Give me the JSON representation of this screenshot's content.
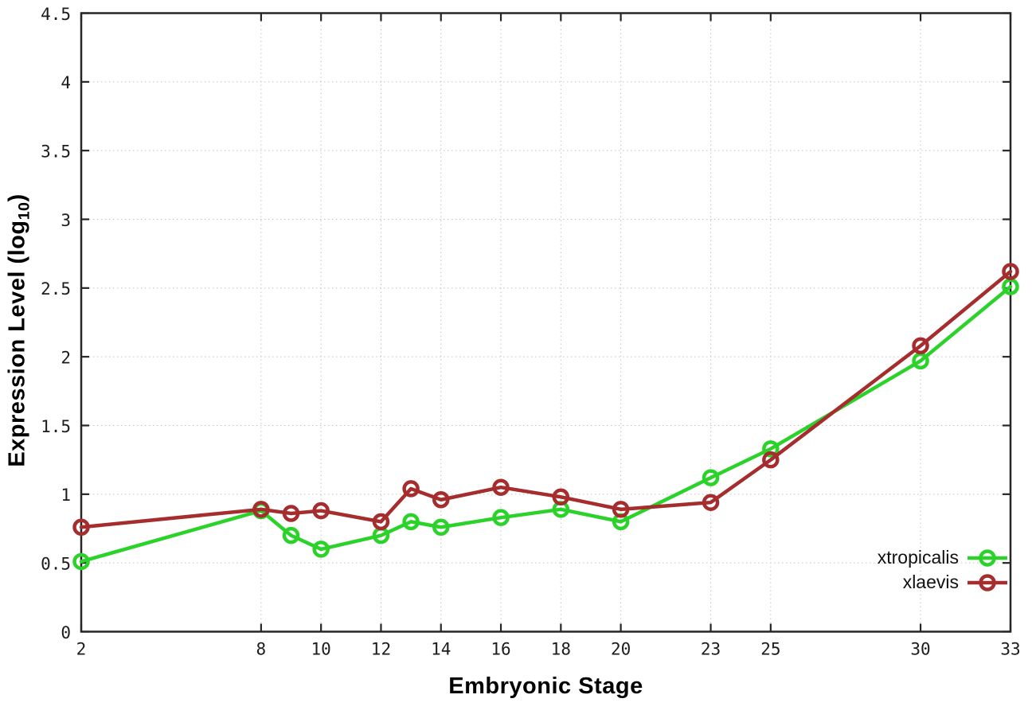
{
  "figure": {
    "xlabel": "Embryonic Stage",
    "ylabel_prefix": "Expression Level (log",
    "ylabel_sub": "10",
    "ylabel_suffix": ")"
  },
  "legend": {
    "entries": [
      {
        "label": "xtropicalis",
        "color": "#2ad22a"
      },
      {
        "label": "xlaevis",
        "color": "#a52d2d"
      }
    ]
  },
  "style": {
    "axis_color": "#262626",
    "grid_color": "#c4c4c4",
    "background": "#ffffff",
    "line_width": 4.5,
    "marker_radius": 8.5,
    "marker_stroke": 4.5
  },
  "chart_data": {
    "type": "line",
    "title": "",
    "xlabel": "Embryonic Stage",
    "ylabel": "Expression Level (log10)",
    "xlim": [
      2,
      33
    ],
    "ylim": [
      0,
      4.5
    ],
    "grid": true,
    "legend_position": "bottom-right",
    "x_ticks": [
      2,
      8,
      10,
      12,
      14,
      16,
      18,
      20,
      23,
      25,
      30,
      33
    ],
    "x_tick_labels": [
      "2",
      "8",
      "10",
      "12",
      "14",
      "16",
      "18",
      "20",
      "23",
      "25",
      "30",
      "33"
    ],
    "y_ticks": [
      0,
      0.5,
      1,
      1.5,
      2,
      2.5,
      3,
      3.5,
      4,
      4.5
    ],
    "y_tick_labels": [
      "0",
      "0.5",
      "1",
      "1.5",
      "2",
      "2.5",
      "3",
      "3.5",
      "4",
      "4.5"
    ],
    "x": [
      2,
      8,
      9,
      10,
      12,
      13,
      14,
      16,
      18,
      20,
      23,
      25,
      30,
      33
    ],
    "series": [
      {
        "name": "xtropicalis",
        "color": "#2ad22a",
        "values": [
          0.51,
          0.88,
          0.7,
          0.6,
          0.7,
          0.8,
          0.76,
          0.83,
          0.89,
          0.8,
          1.12,
          1.33,
          1.97,
          2.51
        ]
      },
      {
        "name": "xlaevis",
        "color": "#a52d2d",
        "values": [
          0.76,
          0.89,
          0.86,
          0.88,
          0.8,
          1.04,
          0.96,
          1.05,
          0.98,
          0.89,
          0.94,
          1.25,
          2.08,
          2.62
        ]
      }
    ]
  }
}
